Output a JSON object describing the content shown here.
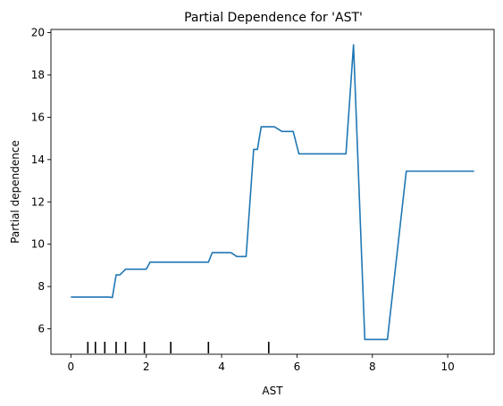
{
  "chart_data": {
    "type": "line",
    "title": "Partial Dependence for 'AST'",
    "xlabel": "AST",
    "ylabel": "Partial dependence",
    "xlim": [
      -0.53,
      11.23
    ],
    "ylim": [
      4.8,
      20.15
    ],
    "grid": false,
    "x_ticks": [
      "0",
      "2",
      "4",
      "6",
      "8",
      "10"
    ],
    "y_ticks": [
      "6",
      "8",
      "10",
      "12",
      "14",
      "16",
      "18",
      "20"
    ],
    "line_color": "#1f77b4",
    "rug_color": "#000000",
    "series": [
      {
        "x": [
          0.0,
          0.5,
          1.0,
          1.1,
          1.2,
          1.3,
          1.45,
          1.6,
          2.0,
          2.1,
          2.5,
          3.0,
          3.5,
          3.65,
          3.75,
          4.0,
          4.25,
          4.4,
          4.5,
          4.65,
          4.85,
          4.95,
          5.05,
          5.4,
          5.6,
          5.9,
          6.05,
          7.0,
          7.3,
          7.5,
          7.8,
          8.0,
          8.4,
          8.9,
          9.5,
          10.7
        ],
        "y": [
          7.5,
          7.5,
          7.5,
          7.48,
          8.55,
          8.55,
          8.82,
          8.82,
          8.82,
          9.15,
          9.15,
          9.15,
          9.15,
          9.15,
          9.6,
          9.6,
          9.6,
          9.42,
          9.42,
          9.42,
          14.48,
          14.48,
          15.55,
          15.55,
          15.33,
          15.33,
          14.27,
          14.27,
          14.27,
          19.42,
          5.5,
          5.5,
          5.5,
          13.45,
          13.45,
          13.45
        ]
      }
    ],
    "rug": [
      0.45,
      0.65,
      0.9,
      1.2,
      1.45,
      1.95,
      2.65,
      3.65,
      5.25
    ]
  }
}
